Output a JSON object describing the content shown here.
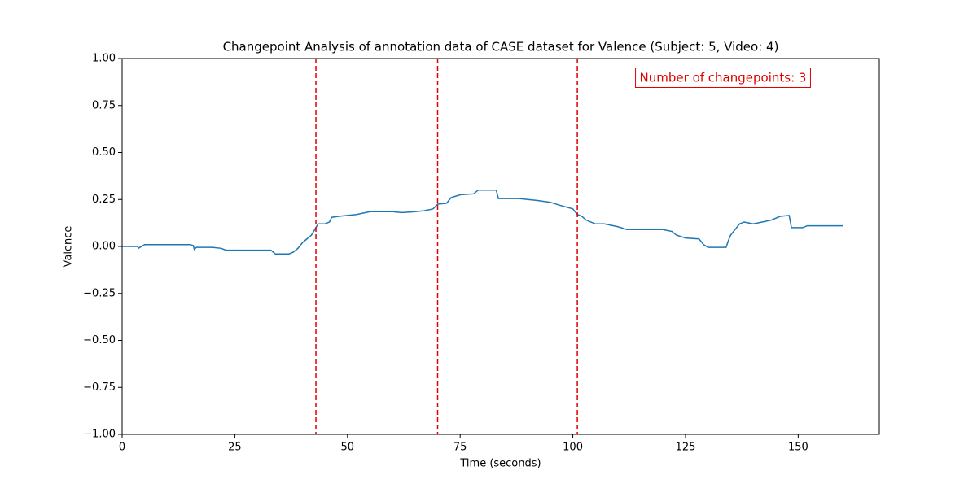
{
  "chart_data": {
    "type": "line",
    "title": "Changepoint Analysis of annotation data of CASE dataset for Valence (Subject: 5, Video: 4)",
    "xlabel": "Time (seconds)",
    "ylabel": "Valence",
    "annotation": "Number of changepoints: 3",
    "annotation_color": "#e00000",
    "xlim": [
      0,
      168
    ],
    "ylim": [
      -1,
      1
    ],
    "xticks": [
      0,
      25,
      50,
      75,
      100,
      125,
      150
    ],
    "yticks": [
      {
        "value": -1,
        "label": "−1.00"
      },
      {
        "value": -0.75,
        "label": "−0.75"
      },
      {
        "value": -0.5,
        "label": "−0.50"
      },
      {
        "value": -0.25,
        "label": "−0.25"
      },
      {
        "value": 0,
        "label": "0.00"
      },
      {
        "value": 0.25,
        "label": "0.25"
      },
      {
        "value": 0.5,
        "label": "0.50"
      },
      {
        "value": 0.75,
        "label": "0.75"
      },
      {
        "value": 1,
        "label": "1.00"
      }
    ],
    "changepoints": [
      43,
      70,
      101
    ],
    "changepoint_color": "#e00000",
    "series": [
      {
        "color": "#1f77b4",
        "x": [
          0,
          3.5,
          3.6,
          5,
          15,
          15.8,
          16,
          16.5,
          20,
          22,
          23,
          33,
          34,
          37,
          38,
          39,
          40,
          41,
          42,
          43,
          43.5,
          45,
          46,
          46.5,
          48,
          50,
          52,
          54,
          55,
          60,
          62,
          65,
          67,
          69,
          70,
          72,
          73,
          75,
          78,
          79,
          83,
          83.5,
          88,
          92,
          95,
          97,
          100,
          101,
          102,
          103,
          105,
          107,
          110,
          112,
          120,
          122,
          123,
          125,
          128,
          129,
          130,
          134,
          134.5,
          135,
          136,
          137,
          138,
          139,
          140,
          142,
          144,
          146,
          148,
          148.5,
          151,
          152,
          160
        ],
        "values": [
          0,
          0,
          -0.01,
          0.01,
          0.01,
          0.005,
          -0.015,
          -0.005,
          -0.005,
          -0.01,
          -0.02,
          -0.02,
          -0.04,
          -0.04,
          -0.03,
          -0.01,
          0.02,
          0.04,
          0.06,
          0.1,
          0.12,
          0.12,
          0.13,
          0.155,
          0.16,
          0.165,
          0.17,
          0.18,
          0.185,
          0.185,
          0.18,
          0.185,
          0.19,
          0.2,
          0.225,
          0.23,
          0.26,
          0.275,
          0.28,
          0.3,
          0.3,
          0.255,
          0.255,
          0.245,
          0.235,
          0.22,
          0.2,
          0.17,
          0.16,
          0.14,
          0.12,
          0.12,
          0.105,
          0.09,
          0.09,
          0.08,
          0.06,
          0.045,
          0.04,
          0.01,
          -0.005,
          -0.005,
          0.03,
          0.06,
          0.09,
          0.12,
          0.13,
          0.125,
          0.12,
          0.13,
          0.14,
          0.16,
          0.165,
          0.1,
          0.1,
          0.11,
          0.11
        ]
      }
    ]
  }
}
